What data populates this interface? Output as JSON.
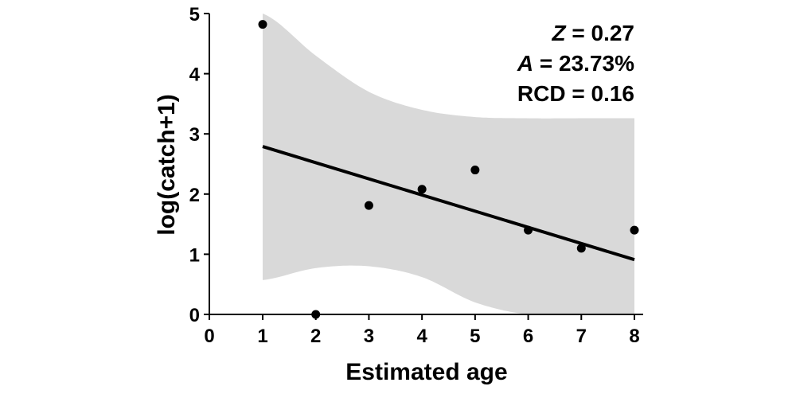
{
  "chart_data": {
    "type": "scatter",
    "xlabel": "Estimated age",
    "ylabel": "log(catch+1)",
    "xlim": [
      0,
      8
    ],
    "ylim": [
      0,
      5
    ],
    "xticks": [
      "0",
      "1",
      "2",
      "3",
      "4",
      "5",
      "6",
      "7",
      "8"
    ],
    "yticks": [
      "0",
      "1",
      "2",
      "3",
      "4",
      "5"
    ],
    "grid": false,
    "points": [
      {
        "x": 1,
        "y": 4.82
      },
      {
        "x": 2,
        "y": 0.0
      },
      {
        "x": 3,
        "y": 1.81
      },
      {
        "x": 4,
        "y": 2.08
      },
      {
        "x": 5,
        "y": 2.4
      },
      {
        "x": 6,
        "y": 1.4
      },
      {
        "x": 7,
        "y": 1.1
      },
      {
        "x": 8,
        "y": 1.4
      }
    ],
    "fit_line": {
      "x": [
        1,
        8
      ],
      "y": [
        2.79,
        0.91
      ]
    },
    "confidence_band": {
      "x": [
        1,
        2,
        3,
        4,
        5,
        6,
        7,
        8
      ],
      "upper": [
        5.0,
        4.3,
        3.7,
        3.4,
        3.28,
        3.26,
        3.26,
        3.26
      ],
      "lower": [
        0.57,
        0.77,
        0.8,
        0.62,
        0.2,
        0.0,
        0.0,
        0.0
      ]
    },
    "annotations": [
      {
        "italic": "Z",
        "text": " = 0.27"
      },
      {
        "italic": "A",
        "text": " = 23.73%"
      },
      {
        "italic": "",
        "text": "RCD = 0.16"
      }
    ],
    "colors": {
      "band": "#d9d9d9",
      "line": "#000000",
      "points": "#000000",
      "axis": "#000000"
    }
  }
}
